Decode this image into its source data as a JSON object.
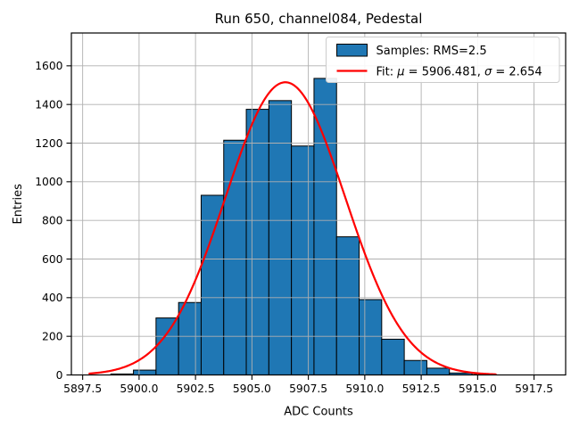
{
  "chart_data": {
    "type": "histogram",
    "title": "Run 650, channel084, Pedestal",
    "xlabel": "ADC Counts",
    "ylabel": "Entries",
    "xlim": [
      5897.0,
      5918.9
    ],
    "ylim": [
      0,
      1770
    ],
    "xticks": [
      5897.5,
      5900.0,
      5902.5,
      5905.0,
      5907.5,
      5910.0,
      5912.5,
      5915.0,
      5917.5
    ],
    "xtick_labels": [
      "5897.5",
      "5900.0",
      "5902.5",
      "5905.0",
      "5907.5",
      "5910.0",
      "5912.5",
      "5915.0",
      "5917.5"
    ],
    "yticks": [
      0,
      200,
      400,
      600,
      800,
      1000,
      1200,
      1400,
      1600
    ],
    "ytick_labels": [
      "0",
      "200",
      "400",
      "600",
      "800",
      "1000",
      "1200",
      "1400",
      "1600"
    ],
    "grid": true,
    "grid_color": "#b0b0b0",
    "bar_color": "#1f77b4",
    "bar_edge_color": "#000000",
    "bins": {
      "start": 5898.75,
      "width": 1.0,
      "counts": [
        5,
        25,
        295,
        375,
        930,
        1215,
        1375,
        1420,
        1185,
        1535,
        715,
        390,
        185,
        75,
        35,
        10,
        2
      ]
    },
    "fit_curve": {
      "shape": "gaussian",
      "mu": 5906.481,
      "sigma": 2.654,
      "amplitude": 1515,
      "x_start": 5897.8,
      "x_end": 5915.8,
      "color": "#ff0000",
      "linewidth": 2.2
    },
    "legend": {
      "location": "upper right",
      "border_color": "#cccccc",
      "entries": [
        {
          "swatch": "patch",
          "color": "#1f77b4",
          "label": "Samples: RMS=2.5"
        },
        {
          "swatch": "line",
          "color": "#ff0000",
          "label": "Fit: μ = 5906.481, σ = 2.654"
        }
      ]
    }
  }
}
